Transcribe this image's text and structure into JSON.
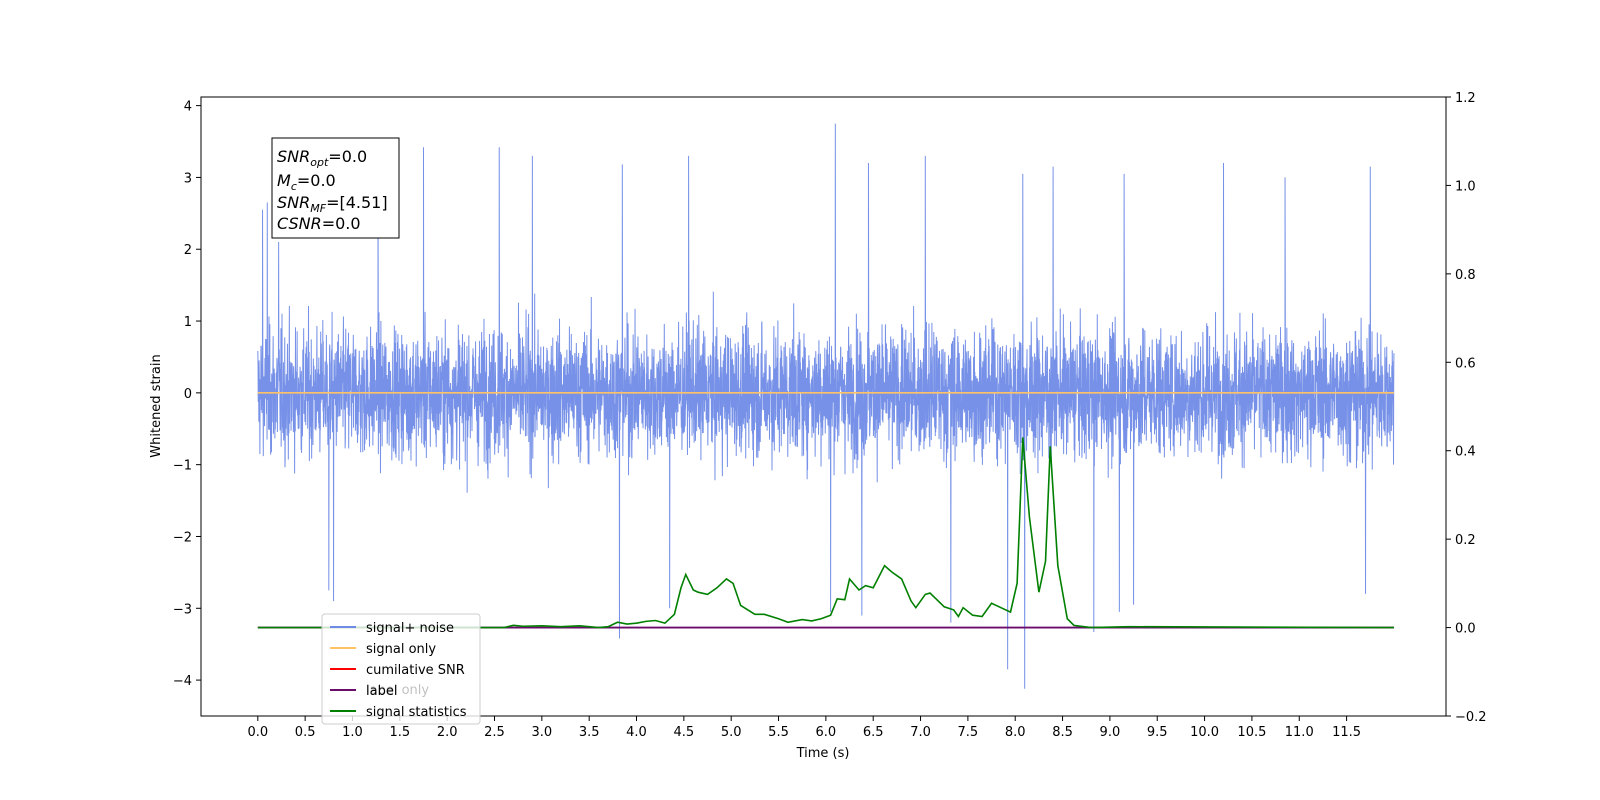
{
  "chart_data": {
    "type": "line",
    "xlabel": "Time (s)",
    "ylabel_left": "Whitened strain",
    "ylabel_right": "",
    "x_ticks": [
      "0.0",
      "0.5",
      "1.0",
      "1.5",
      "2.0",
      "2.5",
      "3.0",
      "3.5",
      "4.0",
      "4.5",
      "5.0",
      "5.5",
      "6.0",
      "6.5",
      "7.0",
      "7.5",
      "8.0",
      "8.5",
      "9.0",
      "9.5",
      "10.0",
      "10.5",
      "11.0",
      "11.5"
    ],
    "y_left_ticks": [
      "4",
      "3",
      "2",
      "1",
      "0",
      "−1",
      "−2",
      "−3",
      "−4"
    ],
    "y_right_ticks": [
      "1.2",
      "1.0",
      "0.8",
      "0.6",
      "0.4",
      "0.2",
      "0.0",
      "−0.2"
    ],
    "xlim": [
      -0.6,
      12.55
    ],
    "ylim_left": [
      -4.5,
      4.12
    ],
    "ylim_right": [
      -0.2,
      1.2
    ],
    "grid": false,
    "legend_position": "lower-left",
    "legend": [
      {
        "label": "signal+ noise",
        "color": "#6f8be6"
      },
      {
        "label": "signal only",
        "color": "#ffc266"
      },
      {
        "label": "cumilative SNR",
        "color": "#ff0000"
      },
      {
        "label": "label",
        "color": "#6a0d6a"
      },
      {
        "label": "signal statistics",
        "color": "#008000"
      }
    ],
    "ghost_legend_text": "label only",
    "annotation": {
      "snr_opt": {
        "sym": "SNR",
        "sub": "opt",
        "val": "=0.0"
      },
      "mc": {
        "sym": "M",
        "sub": "c",
        "val": "=0.0"
      },
      "snr_mf": {
        "sym": "SNR",
        "sub": "MF",
        "val": "=[4.51]"
      },
      "csnr": {
        "sym": "CSNR",
        "sub": "",
        "val": "=0.0"
      }
    },
    "series": [
      {
        "name": "signal+ noise",
        "axis": "left",
        "color": "#6f8be6",
        "x_range": [
          0.0,
          12.0
        ],
        "envelope_typical": [
          -1.4,
          1.6
        ],
        "spikes": [
          {
            "x": 0.05,
            "y": 2.55
          },
          {
            "x": 0.1,
            "y": 2.65
          },
          {
            "x": 0.22,
            "y": 2.1
          },
          {
            "x": 0.8,
            "y": 2.4
          },
          {
            "x": 1.27,
            "y": 3.3
          },
          {
            "x": 1.75,
            "y": 3.42
          },
          {
            "x": 2.55,
            "y": 3.42
          },
          {
            "x": 2.9,
            "y": 3.3
          },
          {
            "x": 3.85,
            "y": 3.18
          },
          {
            "x": 4.55,
            "y": 3.3
          },
          {
            "x": 6.1,
            "y": 3.75
          },
          {
            "x": 6.45,
            "y": 3.2
          },
          {
            "x": 7.05,
            "y": 3.3
          },
          {
            "x": 8.08,
            "y": 3.05
          },
          {
            "x": 8.4,
            "y": 3.15
          },
          {
            "x": 9.15,
            "y": 3.05
          },
          {
            "x": 10.2,
            "y": 3.2
          },
          {
            "x": 10.85,
            "y": 3.0
          },
          {
            "x": 11.75,
            "y": 3.15
          },
          {
            "x": 0.8,
            "y": -2.9
          },
          {
            "x": 0.75,
            "y": -2.75
          },
          {
            "x": 3.82,
            "y": -3.42
          },
          {
            "x": 4.35,
            "y": -3.0
          },
          {
            "x": 6.05,
            "y": -3.05
          },
          {
            "x": 6.38,
            "y": -3.1
          },
          {
            "x": 7.32,
            "y": -3.2
          },
          {
            "x": 7.92,
            "y": -3.85
          },
          {
            "x": 8.1,
            "y": -4.12
          },
          {
            "x": 8.83,
            "y": -3.33
          },
          {
            "x": 9.1,
            "y": -3.05
          },
          {
            "x": 9.25,
            "y": -2.95
          },
          {
            "x": 11.7,
            "y": -2.8
          }
        ]
      },
      {
        "name": "signal only",
        "axis": "left",
        "color": "#ffc266",
        "x": [
          0.0,
          12.0
        ],
        "y": [
          0.0,
          0.0
        ]
      },
      {
        "name": "label",
        "axis": "right",
        "color": "#6a0d6a",
        "x": [
          0.0,
          12.0
        ],
        "y": [
          0.0,
          0.0
        ]
      },
      {
        "name": "signal statistics",
        "axis": "right",
        "color": "#008000",
        "x": [
          0.0,
          2.6,
          2.7,
          2.8,
          3.0,
          3.2,
          3.4,
          3.6,
          3.7,
          3.8,
          3.9,
          4.0,
          4.1,
          4.2,
          4.3,
          4.4,
          4.47,
          4.52,
          4.6,
          4.65,
          4.75,
          4.85,
          4.95,
          5.02,
          5.1,
          5.25,
          5.35,
          5.5,
          5.6,
          5.75,
          5.85,
          5.95,
          6.05,
          6.12,
          6.2,
          6.25,
          6.35,
          6.42,
          6.5,
          6.62,
          6.7,
          6.8,
          6.9,
          6.95,
          7.05,
          7.1,
          7.25,
          7.35,
          7.4,
          7.45,
          7.55,
          7.65,
          7.75,
          7.85,
          7.95,
          8.02,
          8.08,
          8.15,
          8.25,
          8.32,
          8.37,
          8.45,
          8.55,
          8.62,
          8.8,
          9.2,
          12.0
        ],
        "y": [
          0.0,
          0.0,
          0.005,
          0.003,
          0.004,
          0.002,
          0.004,
          0.0,
          0.002,
          0.012,
          0.008,
          0.01,
          0.014,
          0.016,
          0.01,
          0.03,
          0.09,
          0.12,
          0.085,
          0.08,
          0.075,
          0.09,
          0.11,
          0.1,
          0.05,
          0.03,
          0.03,
          0.02,
          0.012,
          0.018,
          0.015,
          0.02,
          0.028,
          0.065,
          0.063,
          0.11,
          0.085,
          0.095,
          0.09,
          0.14,
          0.125,
          0.11,
          0.06,
          0.045,
          0.075,
          0.078,
          0.047,
          0.04,
          0.025,
          0.045,
          0.028,
          0.025,
          0.055,
          0.045,
          0.035,
          0.1,
          0.43,
          0.25,
          0.08,
          0.15,
          0.41,
          0.14,
          0.02,
          0.005,
          0.0,
          0.002,
          0.0
        ]
      }
    ]
  }
}
